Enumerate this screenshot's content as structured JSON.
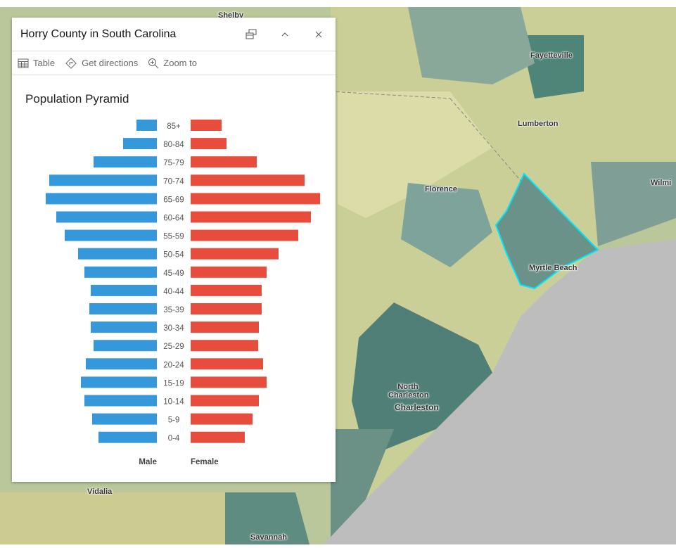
{
  "map": {
    "labels": [
      "Shelby",
      "Fayetteville",
      "Lumberton",
      "Florence",
      "Wilmi",
      "Myrtle Beach",
      "North Charleston",
      "Charleston",
      "Vidalia",
      "Savannah"
    ],
    "ocean_color": "#bdbdbd",
    "highlight_color": "#00e5ff"
  },
  "popup": {
    "title": "Horry County in South Carolina",
    "dock_icon": "dock-icon",
    "collapse_icon": "chevron-up-icon",
    "close_icon": "close-icon",
    "actions": [
      {
        "label": "Table",
        "icon": "table-icon"
      },
      {
        "label": "Get directions",
        "icon": "directions-icon"
      },
      {
        "label": "Zoom to",
        "icon": "zoom-in-icon"
      }
    ]
  },
  "chart_data": {
    "type": "bar",
    "title": "Population Pyramid",
    "orientation": "horizontal-pyramid",
    "categories": [
      "85+",
      "80-84",
      "75-79",
      "70-74",
      "65-69",
      "60-64",
      "55-59",
      "50-54",
      "45-49",
      "40-44",
      "35-39",
      "30-34",
      "25-29",
      "20-24",
      "15-19",
      "10-14",
      "5-9",
      "0-4"
    ],
    "series": [
      {
        "name": "Male",
        "color": "#3498db",
        "values": [
          29,
          48,
          90,
          153,
          158,
          143,
          131,
          112,
          103,
          94,
          96,
          94,
          90,
          101,
          108,
          103,
          92,
          83
        ]
      },
      {
        "name": "Female",
        "color": "#e74c3c",
        "values": [
          44,
          51,
          94,
          162,
          184,
          171,
          153,
          125,
          108,
          101,
          101,
          97,
          96,
          103,
          108,
          97,
          88,
          77
        ]
      }
    ]
  }
}
